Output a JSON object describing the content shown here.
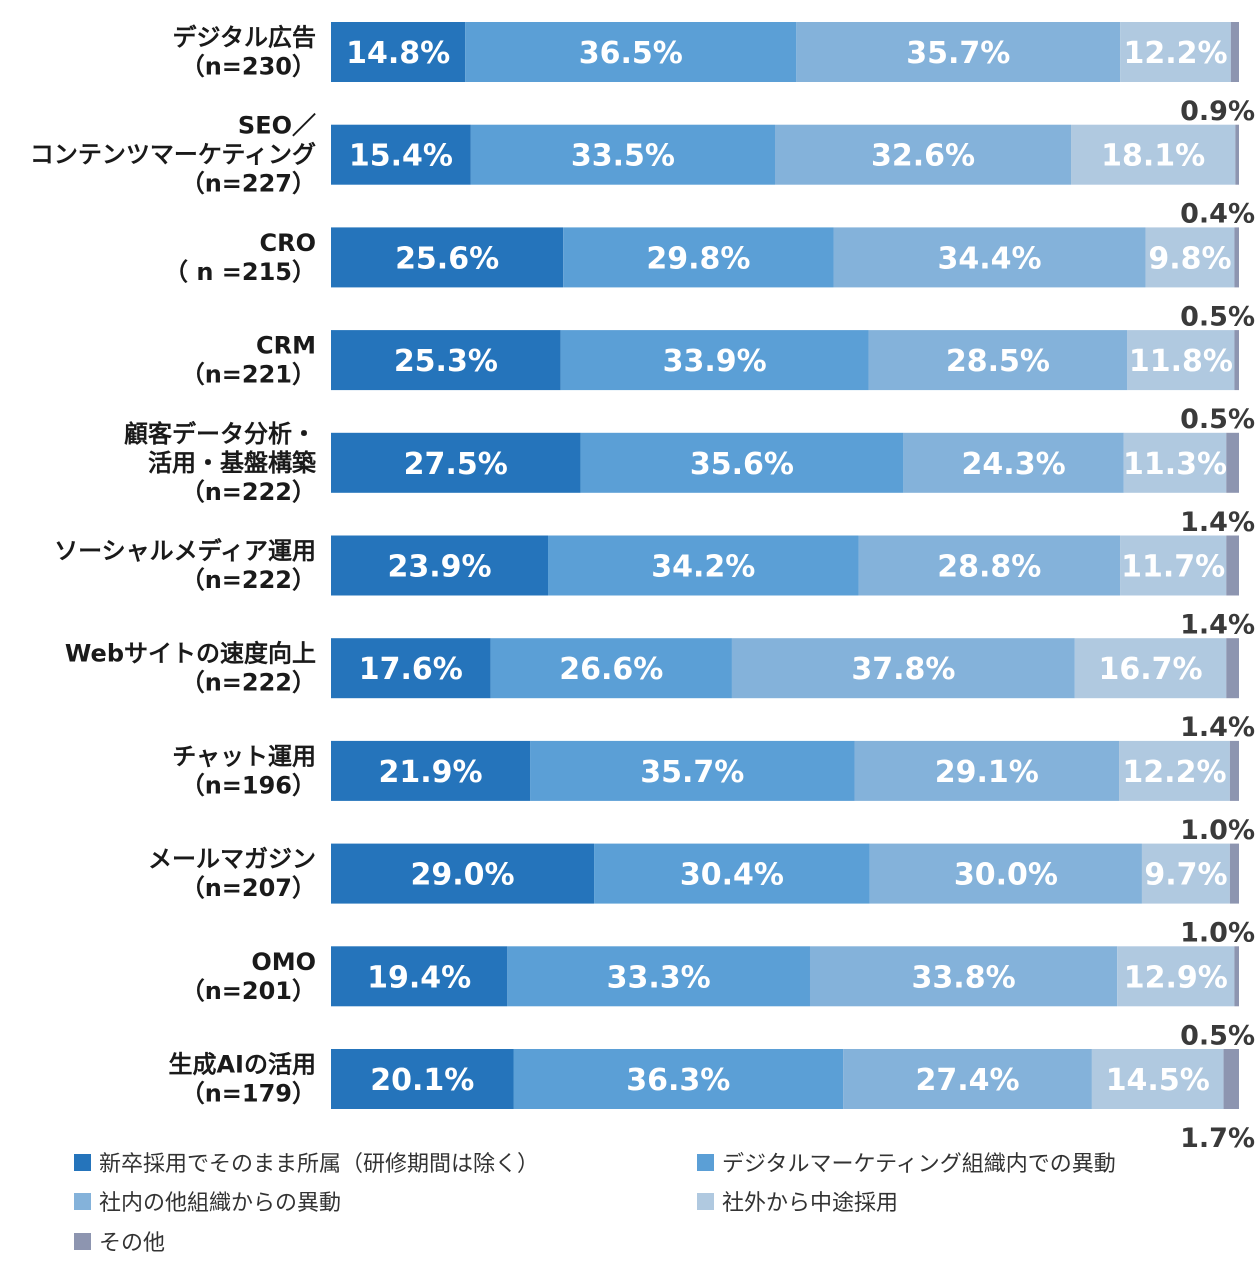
{
  "chart_data": {
    "type": "bar",
    "orientation": "horizontal",
    "stacked": true,
    "percent": true,
    "categories": [
      {
        "name": "デジタル広告",
        "n": "（n=230）"
      },
      {
        "name": "SEO／\nコンテンツマーケティング",
        "n": "（n=227）"
      },
      {
        "name": "CRO",
        "n": "（ n =215）"
      },
      {
        "name": "CRM",
        "n": "（n=221）"
      },
      {
        "name": "顧客データ分析・\n活用・基盤構築",
        "n": "（n=222）"
      },
      {
        "name": "ソーシャルメディア運用",
        "n": "（n=222）"
      },
      {
        "name": "Webサイトの速度向上",
        "n": "（n=222）"
      },
      {
        "name": "チャット運用",
        "n": "（n=196）"
      },
      {
        "name": "メールマガジン",
        "n": "（n=207）"
      },
      {
        "name": "OMO",
        "n": "（n=201）"
      },
      {
        "name": "生成AIの活用",
        "n": "（n=179）"
      }
    ],
    "series": [
      {
        "name": "新卒採用でそのまま所属（研修期間は除く）",
        "color": "#2574bb",
        "values": [
          14.8,
          15.4,
          25.6,
          25.3,
          27.5,
          23.9,
          17.6,
          21.9,
          29.0,
          19.4,
          20.1
        ]
      },
      {
        "name": "デジタルマーケティング組織内での異動",
        "color": "#5b9fd6",
        "values": [
          36.5,
          33.5,
          29.8,
          33.9,
          35.6,
          34.2,
          26.6,
          35.7,
          30.4,
          33.3,
          36.3
        ]
      },
      {
        "name": "社内の他組織からの異動",
        "color": "#84b2da",
        "values": [
          35.7,
          32.6,
          34.4,
          28.5,
          24.3,
          28.8,
          37.8,
          29.1,
          30.0,
          33.8,
          27.4
        ]
      },
      {
        "name": "社外から中途採用",
        "color": "#b0c9e0",
        "values": [
          12.2,
          18.1,
          9.8,
          11.8,
          11.3,
          11.7,
          16.7,
          12.2,
          9.7,
          12.9,
          14.5
        ]
      },
      {
        "name": "その他",
        "color": "#8d95b0",
        "values": [
          0.9,
          0.4,
          0.5,
          0.5,
          1.4,
          1.4,
          1.4,
          1.0,
          1.0,
          0.5,
          1.7
        ]
      }
    ],
    "value_suffix": "%",
    "xlim": [
      0,
      100
    ],
    "legend": "bottom"
  }
}
